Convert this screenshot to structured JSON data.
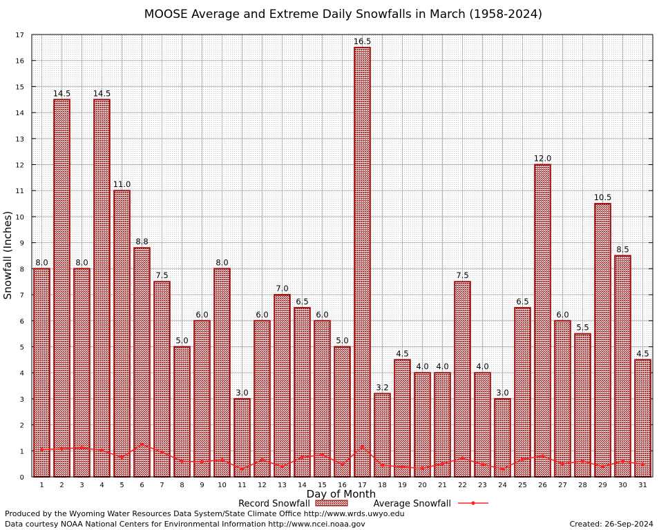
{
  "chart_data": {
    "type": "bar",
    "title": "MOOSE Average and Extreme Daily Snowfalls in March (1958-2024)",
    "xlabel": "Day of Month",
    "ylabel": "Snowfall (Inches)",
    "ylim": [
      0,
      17
    ],
    "yticks": [
      "0",
      "1",
      "2",
      "3",
      "4",
      "5",
      "6",
      "7",
      "8",
      "9",
      "10",
      "11",
      "12",
      "13",
      "14",
      "15",
      "16",
      "17"
    ],
    "grid": true,
    "legend_position": "bottom",
    "categories": [
      "1",
      "2",
      "3",
      "4",
      "5",
      "6",
      "7",
      "8",
      "9",
      "10",
      "11",
      "12",
      "13",
      "14",
      "15",
      "16",
      "17",
      "18",
      "19",
      "20",
      "21",
      "22",
      "23",
      "24",
      "25",
      "26",
      "27",
      "28",
      "29",
      "30",
      "31"
    ],
    "series": [
      {
        "name": "Record Snowfall",
        "kind": "bar",
        "color": "#b22222",
        "values": [
          8.0,
          14.5,
          8.0,
          14.5,
          11.0,
          8.8,
          7.5,
          5.0,
          6.0,
          8.0,
          3.0,
          6.0,
          7.0,
          6.5,
          6.0,
          5.0,
          16.5,
          3.2,
          4.5,
          4.0,
          4.0,
          7.5,
          4.0,
          3.0,
          6.5,
          12.0,
          6.0,
          5.5,
          10.5,
          8.5,
          4.5
        ],
        "labels": [
          "8.0",
          "14.5",
          "8.0",
          "14.5",
          "11.0",
          "8.8",
          "7.5",
          "5.0",
          "6.0",
          "8.0",
          "3.0",
          "6.0",
          "7.0",
          "6.5",
          "6.0",
          "5.0",
          "16.5",
          "3.2",
          "4.5",
          "4.0",
          "4.0",
          "7.5",
          "4.0",
          "3.0",
          "6.5",
          "12.0",
          "6.0",
          "5.5",
          "10.5",
          "8.5",
          "4.5"
        ]
      },
      {
        "name": "Average Snowfall",
        "kind": "line",
        "color": "#ff2020",
        "values": [
          1.05,
          1.08,
          1.12,
          1.02,
          0.75,
          1.25,
          0.95,
          0.6,
          0.58,
          0.65,
          0.3,
          0.65,
          0.4,
          0.75,
          0.85,
          0.48,
          1.15,
          0.45,
          0.38,
          0.33,
          0.5,
          0.72,
          0.48,
          0.3,
          0.68,
          0.8,
          0.5,
          0.6,
          0.4,
          0.6,
          0.48
        ]
      }
    ]
  },
  "footer": {
    "produced_by": "Produced by the Wyoming Water Resources Data System/State Climate Office http://www.wrds.uwyo.edu",
    "courtesy": "Data courtesy NOAA National Centers for Environmental Information http://www.ncei.noaa.gov",
    "created": "Created: 26-Sep-2024"
  }
}
